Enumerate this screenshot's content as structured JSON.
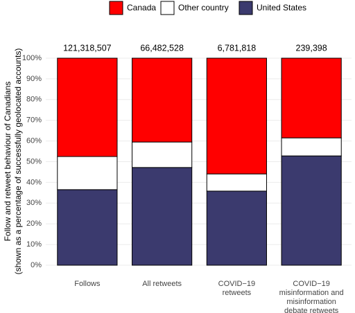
{
  "chart_data": {
    "type": "stacked_bar",
    "y_label": [
      "Follow and retweet behaviour of Canadians",
      "(shown as a percentage of successfully geolocated accounts)"
    ],
    "categories": [
      [
        "Follows"
      ],
      [
        "All retweets"
      ],
      [
        "COVID−19",
        "retweets"
      ],
      [
        "COVID−19",
        "misinformation and",
        "misinformation",
        "debate retweets"
      ]
    ],
    "series": [
      {
        "name": "United States",
        "color": "#3b3a6e",
        "values": [
          36.5,
          47.2,
          35.8,
          52.8
        ]
      },
      {
        "name": "Other country",
        "color": "#ffffff",
        "values": [
          16.0,
          12.3,
          8.3,
          8.7
        ]
      },
      {
        "name": "Canada",
        "color": "#ff0000",
        "values": [
          47.5,
          40.5,
          55.9,
          38.5
        ]
      }
    ],
    "legend_order": [
      2,
      1,
      0
    ],
    "annotations": [
      "121,318,507",
      "66,482,528",
      "6,781,818",
      "239,398"
    ],
    "ylim": [
      0,
      100
    ],
    "yticks": [
      {
        "value": 0,
        "label": "0%"
      },
      {
        "value": 10,
        "label": "10%"
      },
      {
        "value": 20,
        "label": "20%"
      },
      {
        "value": 30,
        "label": "30%"
      },
      {
        "value": 40,
        "label": "40%"
      },
      {
        "value": 50,
        "label": "50%"
      },
      {
        "value": 60,
        "label": "60%"
      },
      {
        "value": 70,
        "label": "70%"
      },
      {
        "value": 80,
        "label": "80%"
      },
      {
        "value": 90,
        "label": "90%"
      },
      {
        "value": 100,
        "label": "100%"
      }
    ],
    "grid": true
  }
}
